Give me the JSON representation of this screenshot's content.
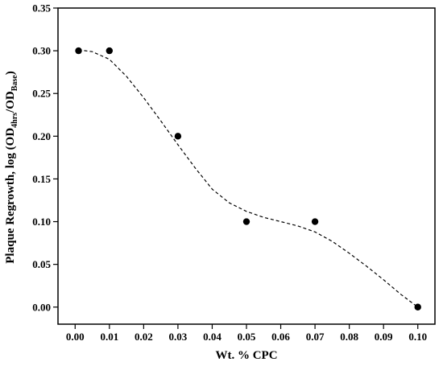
{
  "chart_data": {
    "type": "scatter",
    "title": "",
    "xlabel": "Wt. % CPC",
    "ylabel": {
      "prefix": "Plaque Regrowth, log (OD",
      "sub1": "4hrs",
      "mid": "/OD",
      "sub2": "Base",
      "suffix": ")"
    },
    "xlim": [
      -0.005,
      0.105
    ],
    "ylim": [
      -0.02,
      0.35
    ],
    "xticks": [
      "0.00",
      "0.01",
      "0.02",
      "0.03",
      "0.04",
      "0.05",
      "0.06",
      "0.07",
      "0.08",
      "0.09",
      "0.10"
    ],
    "yticks": [
      "0.00",
      "0.05",
      "0.10",
      "0.15",
      "0.20",
      "0.25",
      "0.30",
      "0.35"
    ],
    "grid": false,
    "series": [
      {
        "type": "scatter",
        "marker": "filled-circle",
        "color": "#000000",
        "x": [
          0.001,
          0.01,
          0.03,
          0.05,
          0.07,
          0.1
        ],
        "y": [
          0.3,
          0.3,
          0.2,
          0.1,
          0.1,
          0.0
        ]
      },
      {
        "type": "line",
        "style": "dashed",
        "color": "#000000",
        "x": [
          0.001,
          0.005,
          0.01,
          0.015,
          0.02,
          0.025,
          0.03,
          0.035,
          0.04,
          0.045,
          0.05,
          0.055,
          0.06,
          0.065,
          0.07,
          0.075,
          0.08,
          0.085,
          0.09,
          0.095,
          0.1
        ],
        "y": [
          0.301,
          0.299,
          0.29,
          0.27,
          0.245,
          0.218,
          0.19,
          0.163,
          0.138,
          0.122,
          0.112,
          0.105,
          0.1,
          0.095,
          0.088,
          0.077,
          0.063,
          0.048,
          0.032,
          0.015,
          0.0
        ]
      }
    ]
  }
}
